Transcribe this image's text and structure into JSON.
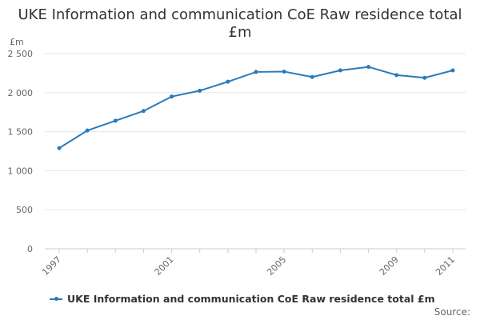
{
  "chart_data": {
    "type": "line",
    "title": "UKE Information and communication CoE Raw residence total £m",
    "ylabel": "£m",
    "xlabel": "",
    "x": [
      1997,
      1998,
      1999,
      2000,
      2001,
      2002,
      2003,
      2004,
      2005,
      2006,
      2007,
      2008,
      2009,
      2010,
      2011
    ],
    "x_tick_labels": [
      "1997",
      "2001",
      "2005",
      "2009",
      "2011"
    ],
    "y_tick_labels": [
      "0",
      "500",
      "1 000",
      "1 500",
      "2 000",
      "2 500"
    ],
    "ylim": [
      0,
      2500
    ],
    "grid": true,
    "series": [
      {
        "name": "UKE Information and communication CoE Raw residence total £m",
        "color": "#2a7ab8",
        "values": [
          1290,
          1515,
          1640,
          1765,
          1950,
          2025,
          2140,
          2265,
          2270,
          2200,
          2285,
          2330,
          2225,
          2190,
          2285
        ]
      }
    ],
    "legend_position": "bottom-left"
  },
  "footer": {
    "source": "Source:"
  }
}
